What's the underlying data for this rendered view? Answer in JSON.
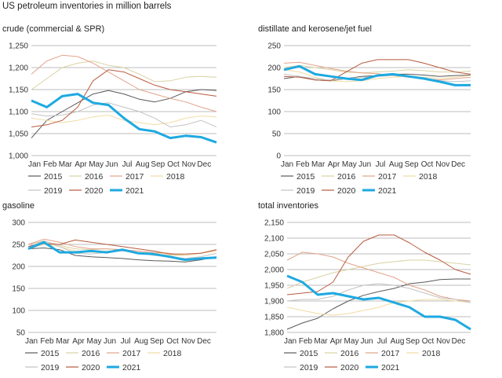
{
  "figure_title": "US petroleum inventories in million barrels",
  "months": [
    "Jan",
    "Feb",
    "Mar",
    "Apr",
    "May",
    "Jun",
    "Jul",
    "Aug",
    "Sep",
    "Oct",
    "Nov",
    "Dec"
  ],
  "series_styles": [
    {
      "name": "2015",
      "color": "#595959",
      "width": 1
    },
    {
      "name": "2016",
      "color": "#d9d2a3",
      "width": 1
    },
    {
      "name": "2017",
      "color": "#e2a38a",
      "width": 1
    },
    {
      "name": "2018",
      "color": "#f2dca4",
      "width": 1
    },
    {
      "name": "2019",
      "color": "#c3c3c3",
      "width": 1
    },
    {
      "name": "2020",
      "color": "#b85b3f",
      "width": 1
    },
    {
      "name": "2021",
      "color": "#1ea9e1",
      "width": 3
    }
  ],
  "chart_data": [
    {
      "type": "line",
      "title": "crude (commercial & SPR)",
      "ylim": [
        1000,
        1250
      ],
      "yticks": [
        1000,
        1050,
        1100,
        1150,
        1200,
        1250
      ],
      "ytick_labels": [
        "1,000",
        "1,050",
        "1,100",
        "1,150",
        "1,200",
        "1,250"
      ],
      "grid": true,
      "legend_position": "bottom",
      "x": [
        1,
        2,
        3,
        4,
        5,
        6,
        7,
        8,
        9,
        10,
        11,
        12,
        13
      ],
      "series": [
        {
          "name": "2015",
          "values": [
            1040,
            1080,
            1100,
            1120,
            1140,
            1148,
            1140,
            1128,
            1122,
            1130,
            1145,
            1150,
            1148
          ]
        },
        {
          "name": "2016",
          "values": [
            1150,
            1175,
            1200,
            1210,
            1215,
            1205,
            1200,
            1185,
            1168,
            1170,
            1178,
            1180,
            1178
          ]
        },
        {
          "name": "2017",
          "values": [
            1185,
            1215,
            1228,
            1225,
            1210,
            1190,
            1170,
            1150,
            1140,
            1130,
            1122,
            1110,
            1100
          ]
        },
        {
          "name": "2018",
          "values": [
            1085,
            1080,
            1075,
            1080,
            1088,
            1092,
            1080,
            1075,
            1070,
            1075,
            1085,
            1090,
            1088
          ]
        },
        {
          "name": "2019",
          "values": [
            1095,
            1090,
            1092,
            1100,
            1115,
            1120,
            1110,
            1100,
            1085,
            1065,
            1070,
            1080,
            1065
          ]
        },
        {
          "name": "2020",
          "values": [
            1065,
            1070,
            1080,
            1110,
            1170,
            1195,
            1190,
            1175,
            1160,
            1150,
            1145,
            1140,
            1135
          ]
        },
        {
          "name": "2021",
          "values": [
            1125,
            1110,
            1135,
            1140,
            1120,
            1115,
            1085,
            1060,
            1055,
            1040,
            1045,
            1042,
            1030
          ]
        }
      ]
    },
    {
      "type": "line",
      "title": "distillate and kerosene/jet fuel",
      "ylim": [
        0,
        250
      ],
      "yticks": [
        0,
        50,
        100,
        150,
        200,
        250
      ],
      "ytick_labels": [
        "0",
        "50",
        "100",
        "150",
        "200",
        "250"
      ],
      "grid": true,
      "legend_position": "bottom",
      "x": [
        1,
        2,
        3,
        4,
        5,
        6,
        7,
        8,
        9,
        10,
        11,
        12,
        13
      ],
      "series": [
        {
          "name": "2015",
          "values": [
            175,
            180,
            172,
            170,
            175,
            180,
            182,
            185,
            185,
            183,
            180,
            182,
            183
          ]
        },
        {
          "name": "2016",
          "values": [
            200,
            205,
            200,
            195,
            190,
            188,
            190,
            192,
            195,
            193,
            190,
            190,
            192
          ]
        },
        {
          "name": "2017",
          "values": [
            210,
            212,
            205,
            198,
            192,
            188,
            186,
            182,
            178,
            175,
            172,
            175,
            178
          ]
        },
        {
          "name": "2018",
          "values": [
            195,
            190,
            178,
            170,
            168,
            170,
            175,
            178,
            180,
            178,
            175,
            178,
            182
          ]
        },
        {
          "name": "2019",
          "values": [
            185,
            180,
            175,
            172,
            175,
            178,
            180,
            182,
            180,
            175,
            170,
            168,
            170
          ]
        },
        {
          "name": "2020",
          "values": [
            180,
            178,
            172,
            170,
            190,
            210,
            218,
            218,
            218,
            210,
            200,
            190,
            185
          ]
        },
        {
          "name": "2021",
          "values": [
            195,
            203,
            185,
            180,
            175,
            172,
            182,
            185,
            180,
            175,
            168,
            160,
            160
          ]
        }
      ]
    },
    {
      "type": "line",
      "title": "gasoline",
      "ylim": [
        50,
        300
      ],
      "yticks": [
        50,
        100,
        150,
        200,
        250,
        300
      ],
      "ytick_labels": [
        "50",
        "100",
        "150",
        "200",
        "250",
        "300"
      ],
      "grid": true,
      "legend_position": "bottom",
      "x": [
        1,
        2,
        3,
        4,
        5,
        6,
        7,
        8,
        9,
        10,
        11,
        12,
        13
      ],
      "series": [
        {
          "name": "2015",
          "values": [
            240,
            242,
            238,
            225,
            222,
            220,
            218,
            215,
            213,
            212,
            210,
            215,
            222
          ]
        },
        {
          "name": "2016",
          "values": [
            250,
            258,
            248,
            240,
            238,
            240,
            238,
            232,
            228,
            225,
            225,
            230,
            235
          ]
        },
        {
          "name": "2017",
          "values": [
            250,
            262,
            255,
            245,
            240,
            240,
            238,
            235,
            232,
            230,
            225,
            230,
            238
          ]
        },
        {
          "name": "2018",
          "values": [
            240,
            250,
            245,
            235,
            232,
            235,
            235,
            232,
            230,
            228,
            225,
            230,
            235
          ]
        },
        {
          "name": "2019",
          "values": [
            245,
            258,
            245,
            230,
            228,
            232,
            235,
            232,
            225,
            222,
            218,
            222,
            230
          ]
        },
        {
          "name": "2020",
          "values": [
            245,
            252,
            250,
            260,
            255,
            250,
            245,
            240,
            235,
            228,
            228,
            230,
            238
          ]
        },
        {
          "name": "2021",
          "values": [
            240,
            255,
            232,
            232,
            235,
            232,
            238,
            230,
            228,
            222,
            215,
            218,
            220
          ]
        }
      ]
    },
    {
      "type": "line",
      "title": "total inventories",
      "ylim": [
        1800,
        2150
      ],
      "yticks": [
        1800,
        1850,
        1900,
        1950,
        2000,
        2050,
        2100,
        2150
      ],
      "ytick_labels": [
        "1,800",
        "1,850",
        "1,900",
        "1,950",
        "2,000",
        "2,050",
        "2,100",
        "2,150"
      ],
      "grid": true,
      "legend_position": "bottom",
      "x": [
        1,
        2,
        3,
        4,
        5,
        6,
        7,
        8,
        9,
        10,
        11,
        12,
        13
      ],
      "series": [
        {
          "name": "2015",
          "values": [
            1810,
            1830,
            1845,
            1875,
            1900,
            1918,
            1930,
            1940,
            1955,
            1960,
            1968,
            1970,
            1970
          ]
        },
        {
          "name": "2016",
          "values": [
            1940,
            1960,
            1975,
            1990,
            2000,
            2010,
            2020,
            2025,
            2030,
            2030,
            2025,
            2020,
            2015
          ]
        },
        {
          "name": "2017",
          "values": [
            2030,
            2055,
            2050,
            2040,
            2020,
            2005,
            1990,
            1975,
            1950,
            1935,
            1915,
            1905,
            1900
          ]
        },
        {
          "name": "2018",
          "values": [
            1880,
            1870,
            1860,
            1855,
            1860,
            1870,
            1880,
            1895,
            1900,
            1905,
            1905,
            1900,
            1895
          ]
        },
        {
          "name": "2019",
          "values": [
            1900,
            1905,
            1905,
            1915,
            1935,
            1950,
            1955,
            1950,
            1940,
            1925,
            1910,
            1905,
            1895
          ]
        },
        {
          "name": "2020",
          "values": [
            1920,
            1925,
            1930,
            1960,
            2040,
            2090,
            2110,
            2110,
            2085,
            2055,
            2030,
            2000,
            1985
          ]
        },
        {
          "name": "2021",
          "values": [
            1980,
            1960,
            1920,
            1925,
            1915,
            1905,
            1910,
            1895,
            1880,
            1850,
            1850,
            1840,
            1810
          ]
        }
      ]
    }
  ]
}
